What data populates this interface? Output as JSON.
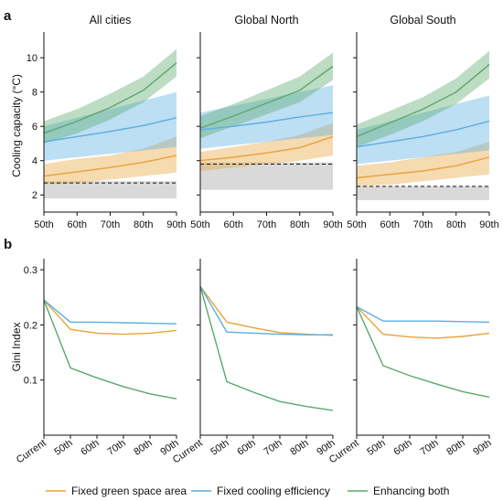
{
  "chart_data": [
    {
      "panel_label": "a",
      "type": "line",
      "ylabel": "Cooling capacity (°C)",
      "ylim": [
        1.0,
        11.5
      ],
      "yticks": [
        2,
        4,
        6,
        8,
        10
      ],
      "categories": [
        "50th",
        "60th",
        "70th",
        "80th",
        "90th"
      ],
      "colors": {
        "green_space": "#e8a33a",
        "efficiency": "#5aaee0",
        "both": "#5ba86b",
        "baseline_band": "#d9d9d9"
      },
      "subplots": [
        {
          "title": "All cities",
          "baseline": 2.7,
          "baseline_band": [
            1.8,
            2.8
          ],
          "series": [
            {
              "key": "green_space",
              "values": [
                3.1,
                3.35,
                3.6,
                3.9,
                4.3
              ],
              "lower": [
                2.6,
                2.7,
                2.9,
                3.1,
                3.3
              ],
              "upper": [
                3.8,
                4.1,
                4.3,
                4.7,
                5.4
              ]
            },
            {
              "key": "efficiency",
              "values": [
                5.1,
                5.4,
                5.7,
                6.05,
                6.5
              ],
              "lower": [
                4.0,
                4.2,
                4.4,
                4.6,
                4.8
              ],
              "upper": [
                6.0,
                6.5,
                7.0,
                7.5,
                8.0
              ]
            },
            {
              "key": "both",
              "values": [
                5.6,
                6.3,
                7.1,
                8.1,
                9.7
              ],
              "lower": [
                5.0,
                5.6,
                6.4,
                7.4,
                8.9
              ],
              "upper": [
                6.3,
                7.0,
                7.9,
                8.9,
                10.5
              ]
            }
          ]
        },
        {
          "title": "Global North",
          "baseline": 3.8,
          "baseline_band": [
            2.3,
            3.9
          ],
          "series": [
            {
              "key": "green_space",
              "values": [
                4.0,
                4.2,
                4.45,
                4.75,
                5.4
              ],
              "lower": [
                3.4,
                3.6,
                3.8,
                4.0,
                4.3
              ],
              "upper": [
                4.5,
                4.8,
                5.1,
                5.5,
                6.2
              ]
            },
            {
              "key": "efficiency",
              "values": [
                5.8,
                6.0,
                6.25,
                6.55,
                6.8
              ],
              "lower": [
                4.7,
                4.9,
                5.1,
                5.3,
                5.5
              ],
              "upper": [
                6.8,
                7.2,
                7.6,
                8.0,
                8.4
              ]
            },
            {
              "key": "both",
              "values": [
                5.9,
                6.6,
                7.35,
                8.1,
                9.5
              ],
              "lower": [
                5.3,
                6.0,
                6.7,
                7.4,
                8.7
              ],
              "upper": [
                6.6,
                7.3,
                8.1,
                8.9,
                10.3
              ]
            }
          ]
        },
        {
          "title": "Global South",
          "baseline": 2.5,
          "baseline_band": [
            1.7,
            2.5
          ],
          "series": [
            {
              "key": "green_space",
              "values": [
                3.0,
                3.2,
                3.4,
                3.7,
                4.2
              ],
              "lower": [
                2.5,
                2.6,
                2.8,
                3.0,
                3.2
              ],
              "upper": [
                3.7,
                3.9,
                4.2,
                4.5,
                5.1
              ]
            },
            {
              "key": "efficiency",
              "values": [
                4.8,
                5.1,
                5.4,
                5.8,
                6.3
              ],
              "lower": [
                3.8,
                4.0,
                4.2,
                4.4,
                4.6
              ],
              "upper": [
                5.8,
                6.3,
                6.8,
                7.3,
                7.8
              ]
            },
            {
              "key": "both",
              "values": [
                5.4,
                6.2,
                7.0,
                8.0,
                9.6
              ],
              "lower": [
                4.8,
                5.5,
                6.3,
                7.3,
                8.8
              ],
              "upper": [
                6.1,
                6.9,
                7.7,
                8.8,
                10.4
              ]
            }
          ]
        }
      ]
    },
    {
      "panel_label": "b",
      "type": "line",
      "ylabel": "Gini Index",
      "ylim": [
        0.0,
        0.32
      ],
      "yticks": [
        0.1,
        0.2,
        0.3
      ],
      "ytick_labels": [
        "0.1",
        "0.2",
        "0.3"
      ],
      "categories": [
        "Current",
        "50th",
        "60th",
        "70th",
        "80th",
        "90th"
      ],
      "subplots": [
        {
          "series": [
            {
              "key": "green_space",
              "values": [
                0.245,
                0.192,
                0.185,
                0.183,
                0.185,
                0.19
              ]
            },
            {
              "key": "efficiency",
              "values": [
                0.245,
                0.205,
                0.205,
                0.204,
                0.203,
                0.202
              ]
            },
            {
              "key": "both",
              "values": [
                0.245,
                0.122,
                0.104,
                0.088,
                0.075,
                0.066
              ]
            }
          ]
        },
        {
          "series": [
            {
              "key": "green_space",
              "values": [
                0.27,
                0.205,
                0.195,
                0.186,
                0.183,
                0.181
              ]
            },
            {
              "key": "efficiency",
              "values": [
                0.27,
                0.187,
                0.185,
                0.183,
                0.182,
                0.182
              ]
            },
            {
              "key": "both",
              "values": [
                0.27,
                0.097,
                0.078,
                0.061,
                0.052,
                0.045
              ]
            }
          ]
        },
        {
          "series": [
            {
              "key": "green_space",
              "values": [
                0.233,
                0.183,
                0.178,
                0.176,
                0.179,
                0.185
              ]
            },
            {
              "key": "efficiency",
              "values": [
                0.233,
                0.207,
                0.207,
                0.207,
                0.206,
                0.205
              ]
            },
            {
              "key": "both",
              "values": [
                0.233,
                0.126,
                0.108,
                0.093,
                0.079,
                0.069
              ]
            }
          ]
        }
      ]
    }
  ],
  "legend": {
    "placement": "bottom",
    "items": [
      {
        "key": "green_space",
        "label": "Fixed green space area",
        "color": "#e8a33a"
      },
      {
        "key": "efficiency",
        "label": "Fixed cooling efficiency",
        "color": "#5aaee0"
      },
      {
        "key": "both",
        "label": "Enhancing both",
        "color": "#5ba86b"
      }
    ]
  }
}
